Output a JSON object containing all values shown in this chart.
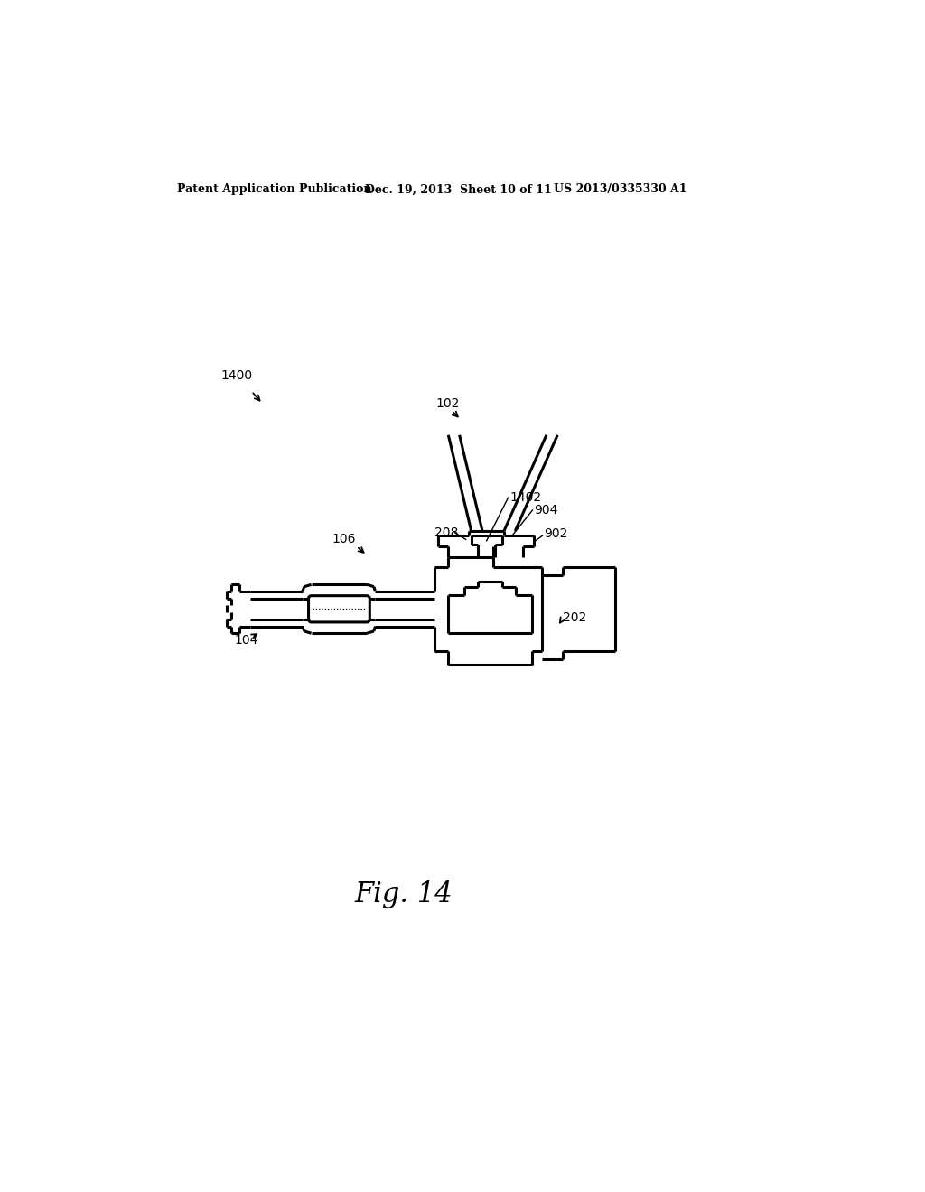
{
  "background_color": "#ffffff",
  "line_color": "#000000",
  "lw": 2.2,
  "header_left": "Patent Application Publication",
  "header_center": "Dec. 19, 2013  Sheet 10 of 11",
  "header_right": "US 2013/0335330 A1",
  "fig_label": "Fig. 14",
  "label_fontsize": 10,
  "header_fontsize": 9
}
